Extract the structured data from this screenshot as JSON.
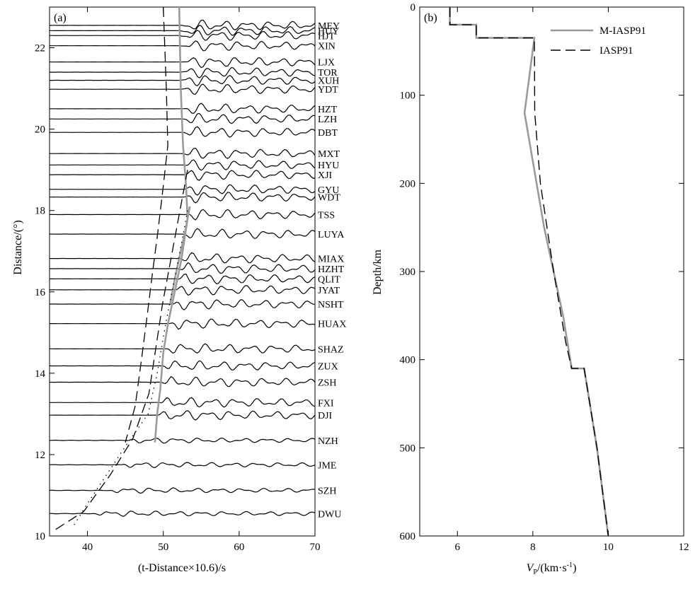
{
  "chart_data": [
    {
      "panel": "(a)",
      "type": "line",
      "xlabel": "(t-Distance×10.6)/s",
      "ylabel": "Distance/(°)",
      "xlim": [
        35,
        70
      ],
      "ylim": [
        10,
        23
      ],
      "xticks": [
        40,
        50,
        60,
        70
      ],
      "yticks": [
        10,
        12,
        14,
        16,
        18,
        20,
        22
      ],
      "grid": false,
      "stations": [
        {
          "name": "MEY",
          "distance": 22.55,
          "onset": 52.2
        },
        {
          "name": "HUY",
          "distance": 22.42,
          "onset": 52.2
        },
        {
          "name": "HJT",
          "distance": 22.3,
          "onset": 52.2
        },
        {
          "name": "XIN",
          "distance": 22.05,
          "onset": 52.3
        },
        {
          "name": "LJX",
          "distance": 21.65,
          "onset": 52.3
        },
        {
          "name": "TOR",
          "distance": 21.4,
          "onset": 52.3
        },
        {
          "name": "XUH",
          "distance": 21.2,
          "onset": 52.3
        },
        {
          "name": "YDT",
          "distance": 20.98,
          "onset": 52.3
        },
        {
          "name": "HZT",
          "distance": 20.5,
          "onset": 52.4
        },
        {
          "name": "LZH",
          "distance": 20.25,
          "onset": 52.4
        },
        {
          "name": "DBT",
          "distance": 19.92,
          "onset": 52.5
        },
        {
          "name": "MXT",
          "distance": 19.4,
          "onset": 52.5
        },
        {
          "name": "HYU",
          "distance": 19.12,
          "onset": 52.6
        },
        {
          "name": "XJI",
          "distance": 18.88,
          "onset": 52.6
        },
        {
          "name": "GYU",
          "distance": 18.52,
          "onset": 52.7
        },
        {
          "name": "WDT",
          "distance": 18.33,
          "onset": 52.8
        },
        {
          "name": "TSS",
          "distance": 17.9,
          "onset": 53.0
        },
        {
          "name": "LUYA",
          "distance": 17.42,
          "onset": 52.6
        },
        {
          "name": "MIAX",
          "distance": 16.82,
          "onset": 52.2
        },
        {
          "name": "HZHT",
          "distance": 16.57,
          "onset": 52.0
        },
        {
          "name": "QLIT",
          "distance": 16.32,
          "onset": 51.8
        },
        {
          "name": "JYAT",
          "distance": 16.05,
          "onset": 51.6
        },
        {
          "name": "NSHT",
          "distance": 15.7,
          "onset": 51.3
        },
        {
          "name": "HUAX",
          "distance": 15.22,
          "onset": 50.9
        },
        {
          "name": "SHAZ",
          "distance": 14.6,
          "onset": 50.4
        },
        {
          "name": "ZUX",
          "distance": 14.18,
          "onset": 50.0
        },
        {
          "name": "ZSH",
          "distance": 13.78,
          "onset": 49.8
        },
        {
          "name": "FXI",
          "distance": 13.28,
          "onset": 49.5
        },
        {
          "name": "DJI",
          "distance": 12.97,
          "onset": 49.3
        },
        {
          "name": "NZH",
          "distance": 12.35,
          "onset": 45.5
        },
        {
          "name": "JME",
          "distance": 11.75,
          "onset": 44.5
        },
        {
          "name": "SZH",
          "distance": 11.12,
          "onset": 43.0
        },
        {
          "name": "DWU",
          "distance": 10.55,
          "onset": 41.0
        }
      ],
      "curves": [
        {
          "style": "solid-gray",
          "points": [
            [
              52.1,
              23.0
            ],
            [
              52.3,
              21.0
            ],
            [
              52.6,
              19.6
            ],
            [
              53.0,
              18.6
            ],
            [
              53.2,
              17.8
            ],
            [
              52.4,
              16.8
            ],
            [
              51.5,
              16.0
            ],
            [
              50.6,
              15.2
            ],
            [
              50.0,
              14.5
            ],
            [
              49.6,
              13.6
            ],
            [
              49.2,
              13.0
            ],
            [
              48.9,
              12.3
            ]
          ]
        },
        {
          "style": "solid-gray",
          "points": [
            [
              53.5,
              18.1
            ],
            [
              52.9,
              17.5
            ],
            [
              52.3,
              17.0
            ],
            [
              51.6,
              16.4
            ],
            [
              50.9,
              15.7
            ]
          ]
        },
        {
          "style": "dashed",
          "points": [
            [
              50.0,
              23.0
            ],
            [
              50.4,
              21.0
            ],
            [
              50.6,
              19.6
            ],
            [
              50.0,
              18.6
            ],
            [
              49.3,
              17.5
            ],
            [
              48.6,
              16.5
            ],
            [
              47.8,
              15.3
            ],
            [
              47.1,
              14.3
            ],
            [
              46.3,
              13.2
            ],
            [
              45.0,
              12.3
            ]
          ]
        },
        {
          "style": "dashed",
          "points": [
            [
              53.2,
              19.0
            ],
            [
              52.0,
              17.8
            ],
            [
              51.0,
              16.8
            ],
            [
              49.9,
              15.7
            ],
            [
              49.0,
              14.6
            ],
            [
              48.1,
              13.5
            ],
            [
              46.0,
              12.4
            ],
            [
              43.0,
              11.5
            ],
            [
              39.5,
              10.6
            ],
            [
              35.3,
              10.1
            ]
          ]
        },
        {
          "style": "dotted",
          "points": [
            [
              53.2,
              18.0
            ],
            [
              52.0,
              16.8
            ],
            [
              50.3,
              15.2
            ],
            [
              49.2,
              14.0
            ],
            [
              48.0,
              13.0
            ],
            [
              45.0,
              12.2
            ],
            [
              42.5,
              11.5
            ],
            [
              40.0,
              10.8
            ],
            [
              38.0,
              10.2
            ]
          ]
        }
      ]
    },
    {
      "panel": "(b)",
      "type": "line",
      "xlabel": "V",
      "xlabel_sub": "P",
      "xlabel_unit": "/(km·s",
      "xlabel_sup": "-1",
      "xlabel_close": ")",
      "ylabel": "Depth/km",
      "xlim": [
        5,
        12
      ],
      "ylim": [
        600,
        0
      ],
      "xticks": [
        6,
        8,
        10,
        12
      ],
      "yticks": [
        0,
        100,
        200,
        300,
        400,
        500,
        600
      ],
      "grid": false,
      "legend_position": "top-right",
      "series": [
        {
          "name": "M-IASP91",
          "style": "solid-gray",
          "points": [
            [
              5.8,
              0
            ],
            [
              5.8,
              20
            ],
            [
              6.5,
              20
            ],
            [
              6.5,
              35
            ],
            [
              8.04,
              35
            ],
            [
              7.78,
              120
            ],
            [
              8.3,
              250
            ],
            [
              8.8,
              350
            ],
            [
              9.03,
              410
            ],
            [
              9.36,
              410
            ],
            [
              9.7,
              500
            ],
            [
              10.0,
              600
            ]
          ]
        },
        {
          "name": "IASP91",
          "style": "dashed",
          "points": [
            [
              5.8,
              0
            ],
            [
              5.8,
              20
            ],
            [
              6.5,
              20
            ],
            [
              6.5,
              35
            ],
            [
              8.04,
              35
            ],
            [
              8.05,
              120
            ],
            [
              8.2,
              200
            ],
            [
              8.55,
              300
            ],
            [
              8.87,
              380
            ],
            [
              9.03,
              410
            ],
            [
              9.36,
              410
            ],
            [
              9.7,
              500
            ],
            [
              10.0,
              600
            ]
          ]
        }
      ]
    }
  ]
}
